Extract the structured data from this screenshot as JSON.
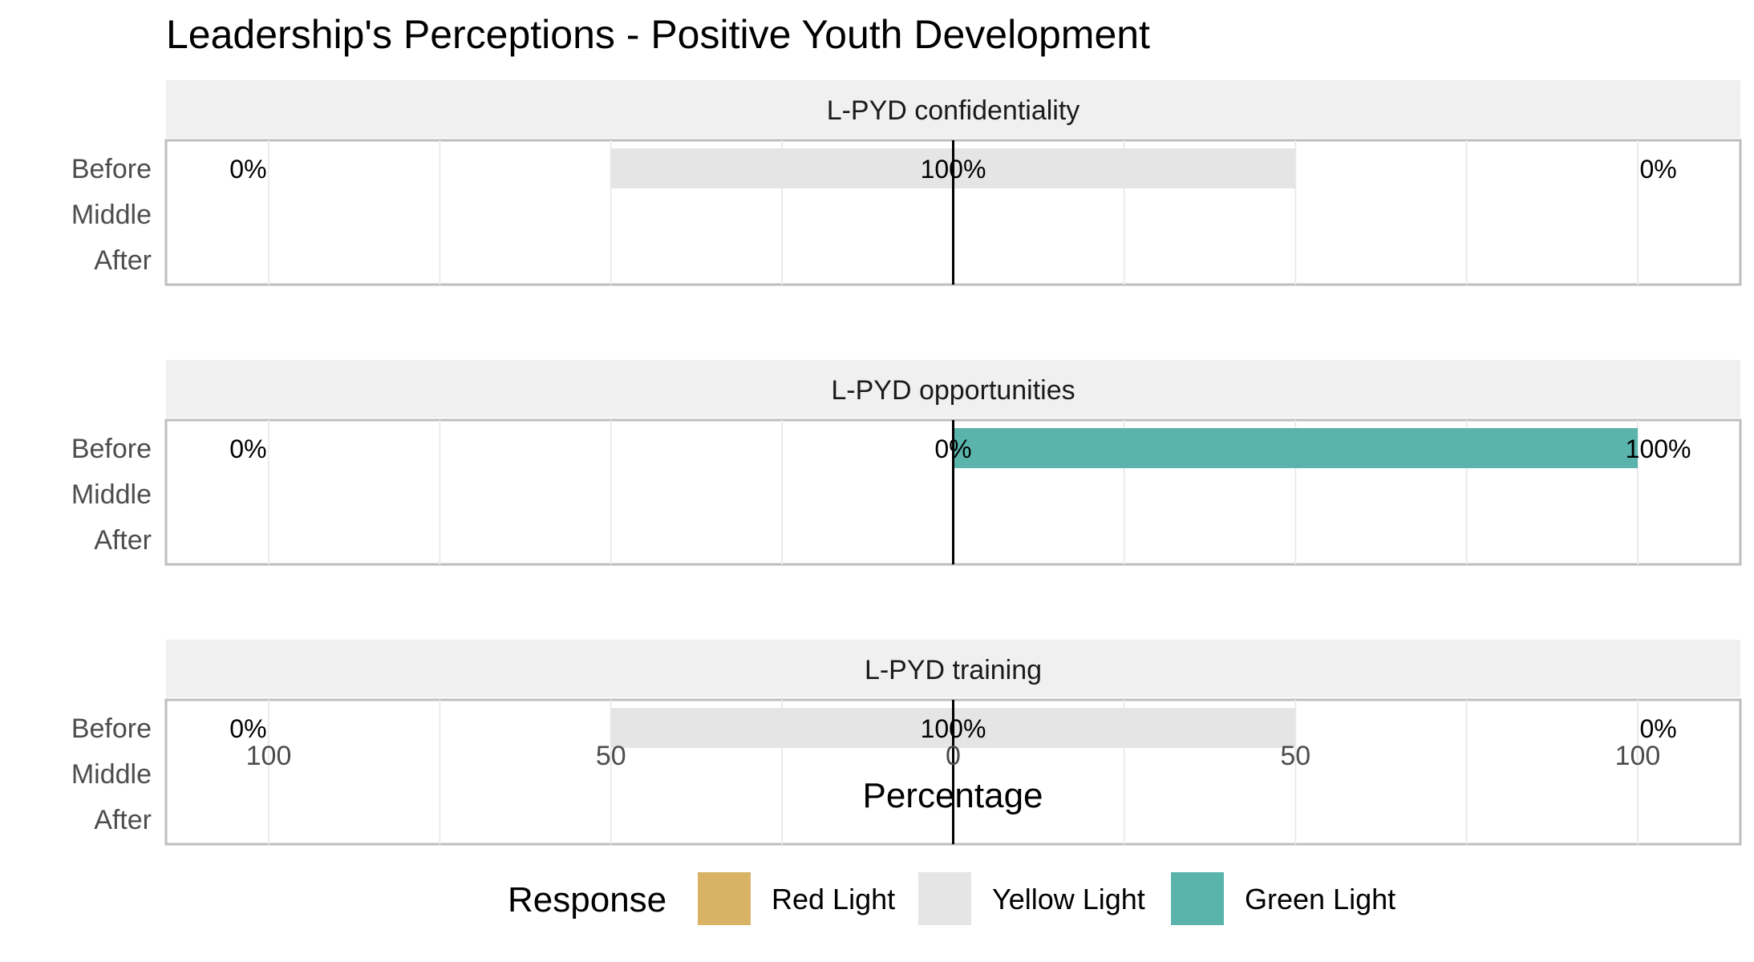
{
  "chart_data": {
    "type": "bar",
    "orientation": "horizontal",
    "stacked": "diverging",
    "title": "Leadership's Perceptions - Positive Youth Development",
    "xlabel": "Percentage",
    "ylabel": "",
    "xlim": [
      -115,
      115
    ],
    "x_ticks": [
      -100,
      -50,
      0,
      50,
      100
    ],
    "x_tick_labels": [
      "100",
      "50",
      "0",
      "50",
      "100"
    ],
    "categories": [
      "Before",
      "Middle",
      "After"
    ],
    "grid": true,
    "legend": {
      "title": "Response",
      "position": "bottom",
      "entries": [
        "Red Light",
        "Yellow Light",
        "Green Light"
      ]
    },
    "colors": {
      "Red Light": "#D8B365",
      "Yellow Light": "#E5E5E5",
      "Green Light": "#5AB4AC"
    },
    "panels": [
      {
        "title": "L-PYD confidentiality",
        "data": [
          {
            "category": "Before",
            "red": 0,
            "yellow": 100,
            "green": 0,
            "labels": {
              "left": "0%",
              "center": "100%",
              "right": "0%"
            }
          }
        ]
      },
      {
        "title": "L-PYD opportunities",
        "data": [
          {
            "category": "Before",
            "red": 0,
            "yellow": 0,
            "green": 100,
            "labels": {
              "left": "0%",
              "center": "0%",
              "right": "100%"
            }
          }
        ]
      },
      {
        "title": "L-PYD training",
        "data": [
          {
            "category": "Before",
            "red": 0,
            "yellow": 100,
            "green": 0,
            "labels": {
              "left": "0%",
              "center": "100%",
              "right": "0%"
            }
          }
        ]
      }
    ]
  }
}
